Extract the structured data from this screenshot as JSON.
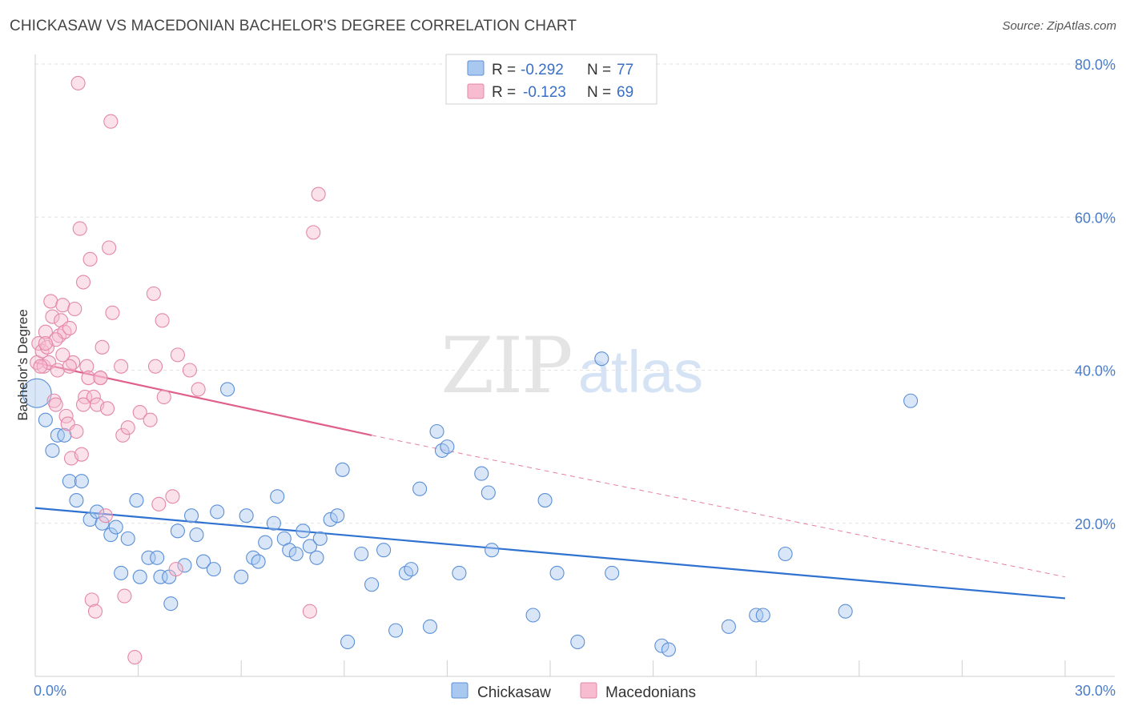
{
  "title": "CHICKASAW VS MACEDONIAN BACHELOR'S DEGREE CORRELATION CHART",
  "source": "Source: ZipAtlas.com",
  "watermark": {
    "zip": "ZIP",
    "atlas": "atlas"
  },
  "colors": {
    "chickasaw_fill": "#a8c8f0",
    "chickasaw_stroke": "#5b8fd6",
    "chickasaw_line": "#2f72d0",
    "macedonian_fill": "#f7bcd0",
    "macedonian_stroke": "#e387a8",
    "macedonian_line": "#e0608c",
    "tick_label": "#4a7cc9"
  },
  "legend": {
    "rows": [
      {
        "r_label": "R =",
        "r_value": "-0.292",
        "n_label": "N =",
        "n_value": "77"
      },
      {
        "r_label": "R =",
        "r_value": "-0.123",
        "n_label": "N =",
        "n_value": "69"
      }
    ]
  },
  "bottom_legend": [
    "Chickasaw",
    "Macedonians"
  ],
  "chart_data": {
    "type": "scatter",
    "title": "CHICKASAW VS MACEDONIAN BACHELOR'S DEGREE CORRELATION CHART",
    "xlabel": "",
    "ylabel": "Bachelor's Degree",
    "xlim": [
      0,
      30
    ],
    "ylim": [
      0,
      80
    ],
    "x_tick_labels": [
      "0.0%",
      "30.0%"
    ],
    "y_tick_labels": [
      "20.0%",
      "40.0%",
      "60.0%",
      "80.0%"
    ],
    "y_ticks": [
      20,
      40,
      60,
      80
    ],
    "grid": true,
    "legend_position": "top-center",
    "series": [
      {
        "name": "Chickasaw",
        "R": -0.292,
        "N": 77,
        "trend": {
          "x": [
            0,
            30
          ],
          "y": [
            22.0,
            10.2
          ]
        },
        "points": [
          {
            "x": 0.05,
            "y": 37.0,
            "big": true
          },
          {
            "x": 0.3,
            "y": 33.5
          },
          {
            "x": 0.5,
            "y": 29.5
          },
          {
            "x": 0.65,
            "y": 31.5
          },
          {
            "x": 0.85,
            "y": 31.5
          },
          {
            "x": 1.0,
            "y": 25.5
          },
          {
            "x": 1.2,
            "y": 23.0
          },
          {
            "x": 1.35,
            "y": 25.5
          },
          {
            "x": 1.6,
            "y": 20.5
          },
          {
            "x": 1.8,
            "y": 21.5
          },
          {
            "x": 1.95,
            "y": 20.0
          },
          {
            "x": 2.2,
            "y": 18.5
          },
          {
            "x": 2.35,
            "y": 19.5
          },
          {
            "x": 2.5,
            "y": 13.5
          },
          {
            "x": 2.7,
            "y": 18.0
          },
          {
            "x": 2.95,
            "y": 23.0
          },
          {
            "x": 3.05,
            "y": 13.0
          },
          {
            "x": 3.3,
            "y": 15.5
          },
          {
            "x": 3.55,
            "y": 15.5
          },
          {
            "x": 3.65,
            "y": 13.0
          },
          {
            "x": 3.9,
            "y": 13.0
          },
          {
            "x": 3.95,
            "y": 9.5
          },
          {
            "x": 4.15,
            "y": 19.0
          },
          {
            "x": 4.35,
            "y": 14.5
          },
          {
            "x": 4.55,
            "y": 21.0
          },
          {
            "x": 4.7,
            "y": 18.5
          },
          {
            "x": 4.9,
            "y": 15.0
          },
          {
            "x": 5.2,
            "y": 14.0
          },
          {
            "x": 5.3,
            "y": 21.5
          },
          {
            "x": 5.6,
            "y": 37.5
          },
          {
            "x": 6.0,
            "y": 13.0
          },
          {
            "x": 6.15,
            "y": 21.0
          },
          {
            "x": 6.35,
            "y": 15.5
          },
          {
            "x": 6.5,
            "y": 15.0
          },
          {
            "x": 6.7,
            "y": 17.5
          },
          {
            "x": 6.95,
            "y": 20.0
          },
          {
            "x": 7.05,
            "y": 23.5
          },
          {
            "x": 7.25,
            "y": 18.0
          },
          {
            "x": 7.4,
            "y": 16.5
          },
          {
            "x": 7.6,
            "y": 16.0
          },
          {
            "x": 7.8,
            "y": 19.0
          },
          {
            "x": 8.0,
            "y": 17.0
          },
          {
            "x": 8.2,
            "y": 15.5
          },
          {
            "x": 8.3,
            "y": 18.0
          },
          {
            "x": 8.6,
            "y": 20.5
          },
          {
            "x": 8.8,
            "y": 21.0
          },
          {
            "x": 8.95,
            "y": 27.0
          },
          {
            "x": 9.1,
            "y": 4.5
          },
          {
            "x": 9.5,
            "y": 16.0
          },
          {
            "x": 9.8,
            "y": 12.0
          },
          {
            "x": 10.15,
            "y": 16.5
          },
          {
            "x": 10.5,
            "y": 6.0
          },
          {
            "x": 10.8,
            "y": 13.5
          },
          {
            "x": 10.95,
            "y": 14.0
          },
          {
            "x": 11.2,
            "y": 24.5
          },
          {
            "x": 11.5,
            "y": 6.5
          },
          {
            "x": 11.7,
            "y": 32.0
          },
          {
            "x": 11.85,
            "y": 29.5
          },
          {
            "x": 12.0,
            "y": 30.0
          },
          {
            "x": 12.35,
            "y": 13.5
          },
          {
            "x": 13.0,
            "y": 26.5
          },
          {
            "x": 13.2,
            "y": 24.0
          },
          {
            "x": 13.3,
            "y": 16.5
          },
          {
            "x": 14.5,
            "y": 8.0
          },
          {
            "x": 14.85,
            "y": 23.0
          },
          {
            "x": 15.2,
            "y": 13.5
          },
          {
            "x": 15.8,
            "y": 4.5
          },
          {
            "x": 16.5,
            "y": 41.5
          },
          {
            "x": 16.8,
            "y": 13.5
          },
          {
            "x": 18.25,
            "y": 4.0
          },
          {
            "x": 18.45,
            "y": 3.5
          },
          {
            "x": 20.2,
            "y": 6.5
          },
          {
            "x": 21.0,
            "y": 8.0
          },
          {
            "x": 21.2,
            "y": 8.0
          },
          {
            "x": 21.85,
            "y": 16.0
          },
          {
            "x": 23.6,
            "y": 8.5
          },
          {
            "x": 25.5,
            "y": 36.0
          }
        ]
      },
      {
        "name": "Macedonians",
        "R": -0.123,
        "N": 69,
        "trend": {
          "x": [
            0,
            9.8
          ],
          "y": [
            41.0,
            31.5
          ],
          "dashed_to": {
            "x": 30,
            "y": 13.0
          }
        },
        "points": [
          {
            "x": 0.05,
            "y": 41.0
          },
          {
            "x": 0.1,
            "y": 43.5
          },
          {
            "x": 0.2,
            "y": 42.5
          },
          {
            "x": 0.25,
            "y": 40.5
          },
          {
            "x": 0.3,
            "y": 45.0
          },
          {
            "x": 0.35,
            "y": 43.0
          },
          {
            "x": 0.4,
            "y": 41.0
          },
          {
            "x": 0.45,
            "y": 49.0
          },
          {
            "x": 0.5,
            "y": 47.0
          },
          {
            "x": 0.55,
            "y": 36.0
          },
          {
            "x": 0.6,
            "y": 35.5
          },
          {
            "x": 0.65,
            "y": 40.0
          },
          {
            "x": 0.7,
            "y": 44.5
          },
          {
            "x": 0.75,
            "y": 46.5
          },
          {
            "x": 0.8,
            "y": 48.5
          },
          {
            "x": 0.85,
            "y": 45.0
          },
          {
            "x": 0.9,
            "y": 34.0
          },
          {
            "x": 0.95,
            "y": 33.0
          },
          {
            "x": 1.0,
            "y": 45.5
          },
          {
            "x": 1.05,
            "y": 28.5
          },
          {
            "x": 1.1,
            "y": 41.0
          },
          {
            "x": 1.15,
            "y": 48.0
          },
          {
            "x": 1.2,
            "y": 32.0
          },
          {
            "x": 1.25,
            "y": 77.5
          },
          {
            "x": 1.3,
            "y": 58.5
          },
          {
            "x": 1.35,
            "y": 29.0
          },
          {
            "x": 1.4,
            "y": 51.5
          },
          {
            "x": 1.45,
            "y": 36.5
          },
          {
            "x": 1.5,
            "y": 40.5
          },
          {
            "x": 1.55,
            "y": 39.0
          },
          {
            "x": 1.6,
            "y": 54.5
          },
          {
            "x": 1.65,
            "y": 10.0
          },
          {
            "x": 1.7,
            "y": 36.5
          },
          {
            "x": 1.75,
            "y": 8.5
          },
          {
            "x": 1.8,
            "y": 35.5
          },
          {
            "x": 1.9,
            "y": 39.0
          },
          {
            "x": 1.95,
            "y": 43.0
          },
          {
            "x": 2.05,
            "y": 21.0
          },
          {
            "x": 2.1,
            "y": 35.0
          },
          {
            "x": 2.15,
            "y": 56.0
          },
          {
            "x": 2.2,
            "y": 72.5
          },
          {
            "x": 2.25,
            "y": 47.5
          },
          {
            "x": 2.5,
            "y": 40.5
          },
          {
            "x": 2.55,
            "y": 31.5
          },
          {
            "x": 2.6,
            "y": 10.5
          },
          {
            "x": 2.7,
            "y": 32.5
          },
          {
            "x": 2.9,
            "y": 2.5
          },
          {
            "x": 3.05,
            "y": 34.5
          },
          {
            "x": 3.35,
            "y": 33.5
          },
          {
            "x": 3.45,
            "y": 50.0
          },
          {
            "x": 3.5,
            "y": 40.5
          },
          {
            "x": 3.6,
            "y": 22.5
          },
          {
            "x": 3.7,
            "y": 46.5
          },
          {
            "x": 3.75,
            "y": 36.5
          },
          {
            "x": 4.0,
            "y": 23.5
          },
          {
            "x": 4.1,
            "y": 14.0
          },
          {
            "x": 4.15,
            "y": 42.0
          },
          {
            "x": 4.5,
            "y": 40.0
          },
          {
            "x": 4.75,
            "y": 37.5
          },
          {
            "x": 8.0,
            "y": 8.5
          },
          {
            "x": 8.1,
            "y": 58.0
          },
          {
            "x": 8.25,
            "y": 63.0
          },
          {
            "x": 0.15,
            "y": 40.5
          },
          {
            "x": 0.6,
            "y": 44.0
          },
          {
            "x": 1.0,
            "y": 40.5
          },
          {
            "x": 1.4,
            "y": 35.5
          },
          {
            "x": 0.8,
            "y": 42.0
          },
          {
            "x": 1.9,
            "y": 39.0
          },
          {
            "x": 0.3,
            "y": 43.5
          }
        ]
      }
    ]
  }
}
